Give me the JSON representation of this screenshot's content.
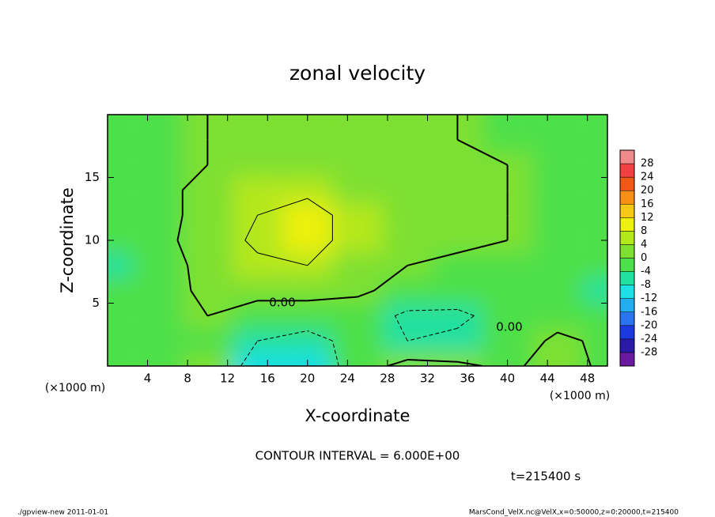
{
  "chart_data": {
    "type": "contour",
    "title": "zonal velocity",
    "xlabel": "X-coordinate",
    "ylabel": "Z-coordinate",
    "x_unit_label": "(×1000 m)",
    "xlim": [
      0,
      50
    ],
    "ylim": [
      0,
      20
    ],
    "xticks": [
      4,
      8,
      12,
      16,
      20,
      24,
      28,
      32,
      36,
      40,
      44,
      48
    ],
    "yticks": [
      5,
      10,
      15
    ],
    "x": [
      0,
      5,
      10,
      15,
      20,
      25,
      30,
      35,
      40,
      45,
      50
    ],
    "y": [
      0,
      2,
      4,
      6,
      8,
      10,
      12,
      14,
      16,
      18,
      20
    ],
    "z": [
      [
        -2,
        -1,
        0,
        -9,
        -11,
        -3,
        2,
        1,
        -1,
        2,
        -1
      ],
      [
        -2,
        -3,
        -1,
        -6,
        -8,
        -4,
        -6,
        -5,
        -3,
        1,
        -1
      ],
      [
        -3,
        -1,
        0,
        -3,
        -3,
        -3,
        -7,
        -7,
        -4,
        -2,
        -2
      ],
      [
        -4,
        -2,
        1,
        2,
        2,
        1,
        -2,
        -3,
        -2,
        -4,
        -6
      ],
      [
        -5,
        -3,
        2,
        5,
        6,
        3,
        0,
        -1,
        -1,
        -2,
        -3
      ],
      [
        -4,
        -2,
        3,
        7,
        8,
        4,
        2,
        1,
        0,
        -1,
        -2
      ],
      [
        -4,
        -2,
        2,
        6,
        8,
        4,
        2,
        1,
        0,
        -1,
        -2
      ],
      [
        -3,
        -1,
        1,
        4,
        5,
        3,
        2,
        1,
        0,
        -1,
        -1
      ],
      [
        -2,
        -1,
        0,
        2,
        2,
        2,
        1,
        1,
        0,
        -1,
        -1
      ],
      [
        -1,
        -1,
        0,
        1,
        1,
        1,
        1,
        0,
        -1,
        -1,
        -1
      ],
      [
        -1,
        -1,
        0,
        1,
        1,
        1,
        0,
        0,
        -1,
        -1,
        -1
      ]
    ],
    "contour_levels": [
      -6,
      0,
      6
    ],
    "contour_labels": [
      "0.00",
      "0.00"
    ],
    "colorbar": {
      "levels": [
        -28,
        -24,
        -20,
        -16,
        -12,
        -8,
        -4,
        0,
        4,
        8,
        12,
        16,
        20,
        24,
        28
      ],
      "colors": [
        "#6a1aa0",
        "#2a1aa8",
        "#1a3ae0",
        "#2a74f0",
        "#22aef0",
        "#1ee0e6",
        "#22e0a0",
        "#4ee04a",
        "#7ee030",
        "#b4e81e",
        "#eef010",
        "#f8c818",
        "#f89018",
        "#f05818",
        "#f04040",
        "#f08a8a"
      ]
    },
    "annotations": [
      "CONTOUR INTERVAL = 6.000E+00",
      "t=215400 s"
    ],
    "footer_left": "./gpview-new  2011-01-01",
    "footer_right": "MarsCond_VelX.nc@VelX,x=0:50000,z=0:20000,t=215400"
  }
}
